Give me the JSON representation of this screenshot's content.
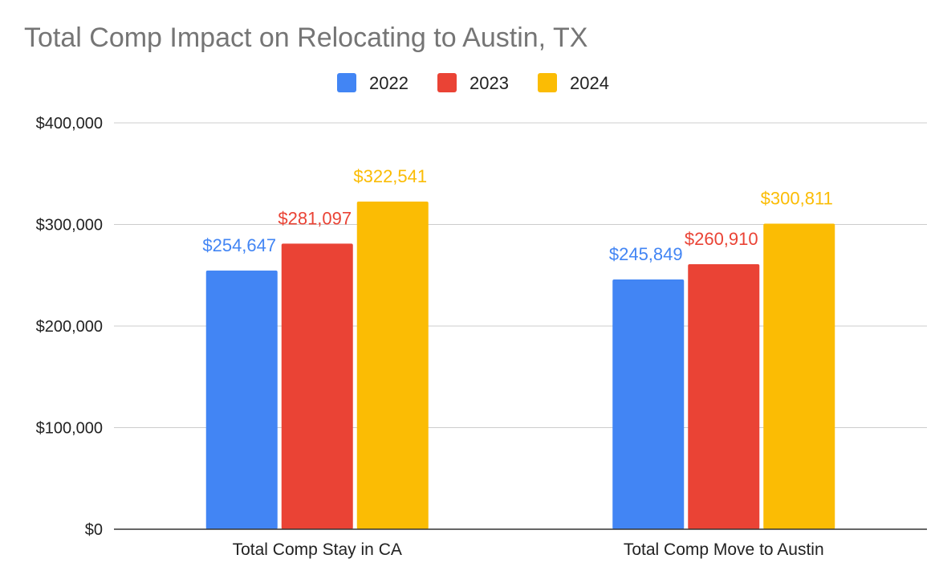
{
  "chart_data": {
    "type": "bar",
    "title": "Total Comp Impact on Relocating to Austin, TX",
    "xlabel": "",
    "ylabel": "",
    "categories": [
      "Total Comp Stay in CA",
      "Total Comp Move to Austin"
    ],
    "series": [
      {
        "name": "2022",
        "color": "#4285F4",
        "values": [
          254647,
          245849
        ],
        "labels": [
          "$254,647",
          "$245,849"
        ]
      },
      {
        "name": "2023",
        "color": "#EA4335",
        "values": [
          281097,
          260910
        ],
        "labels": [
          "$281,097",
          "$260,910"
        ]
      },
      {
        "name": "2024",
        "color": "#FBBC04",
        "values": [
          322541,
          300811
        ],
        "labels": [
          "$322,541",
          "$300,811"
        ]
      }
    ],
    "ylim": [
      0,
      400000
    ],
    "yticks": [
      0,
      100000,
      200000,
      300000,
      400000
    ],
    "ytick_labels": [
      "$0",
      "$100,000",
      "$200,000",
      "$300,000",
      "$400,000"
    ],
    "grid": true,
    "legend_position": "top-center"
  }
}
